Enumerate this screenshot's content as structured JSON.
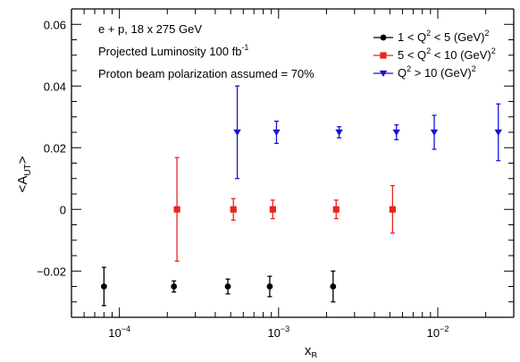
{
  "chart_data": {
    "type": "scatter",
    "title": "",
    "xlabel": "x",
    "xlabel_sub": "B",
    "ylabel": "<A",
    "ylabel_sub": "UT",
    "ylabel_close": ">",
    "xscale": "log",
    "xlim": [
      5e-05,
      0.03
    ],
    "ylim": [
      -0.035,
      0.065
    ],
    "grid": false,
    "legend_position": "top-right",
    "annotations": [
      {
        "id": "beam",
        "text": "e + p, 18 x 275 GeV"
      },
      {
        "id": "lumi",
        "text": "Projected Luminosity 100 fb",
        "sup": "-1"
      },
      {
        "id": "pol",
        "text": "Proton beam polarization assumed = 70%"
      }
    ],
    "x_ticks_major": [
      {
        "value": 0.0001,
        "base": "10",
        "exp": "−4"
      },
      {
        "value": 0.001,
        "base": "10",
        "exp": "−3"
      },
      {
        "value": 0.01,
        "base": "10",
        "exp": "−2"
      }
    ],
    "y_ticks": [
      {
        "value": -0.02,
        "label": "−0.02"
      },
      {
        "value": 0,
        "label": "0"
      },
      {
        "value": 0.02,
        "label": "0.02"
      },
      {
        "value": 0.04,
        "label": "0.04"
      },
      {
        "value": 0.06,
        "label": "0.06"
      }
    ],
    "series": [
      {
        "name": "1 < Q² < 5 (GeV)²",
        "legend_parts": [
          "1 < Q",
          "2",
          " < 5 (GeV)",
          "2"
        ],
        "color": "#000000",
        "marker": "circle",
        "points": [
          {
            "x": 8e-05,
            "y": -0.025,
            "err": 0.0062
          },
          {
            "x": 0.00022,
            "y": -0.025,
            "err": 0.0018
          },
          {
            "x": 0.00048,
            "y": -0.025,
            "err": 0.0024
          },
          {
            "x": 0.00088,
            "y": -0.025,
            "err": 0.0033
          },
          {
            "x": 0.0022,
            "y": -0.025,
            "err": 0.005
          }
        ]
      },
      {
        "name": "5 < Q² < 10 (GeV)²",
        "legend_parts": [
          "5 < Q",
          "2",
          " < 10 (GeV)",
          "2"
        ],
        "color": "#e8251f",
        "marker": "square",
        "points": [
          {
            "x": 0.00023,
            "y": 0.0,
            "err": 0.0168
          },
          {
            "x": 0.00052,
            "y": 0.0,
            "err": 0.0035
          },
          {
            "x": 0.00092,
            "y": 0.0,
            "err": 0.003
          },
          {
            "x": 0.0023,
            "y": 0.0,
            "err": 0.003
          },
          {
            "x": 0.0052,
            "y": 0.0,
            "err": 0.0077
          }
        ]
      },
      {
        "name": "Q² > 10 (GeV)²",
        "legend_parts": [
          "Q",
          "2",
          " > 10 (GeV)",
          "2"
        ],
        "color": "#1414d6",
        "marker": "triangle-down",
        "points": [
          {
            "x": 0.00055,
            "y": 0.025,
            "err": 0.015
          },
          {
            "x": 0.00097,
            "y": 0.025,
            "err": 0.0036
          },
          {
            "x": 0.0024,
            "y": 0.025,
            "err": 0.0018
          },
          {
            "x": 0.0055,
            "y": 0.025,
            "err": 0.0024
          },
          {
            "x": 0.0095,
            "y": 0.025,
            "err": 0.0055
          },
          {
            "x": 0.024,
            "y": 0.025,
            "err": 0.0092
          }
        ]
      }
    ]
  }
}
